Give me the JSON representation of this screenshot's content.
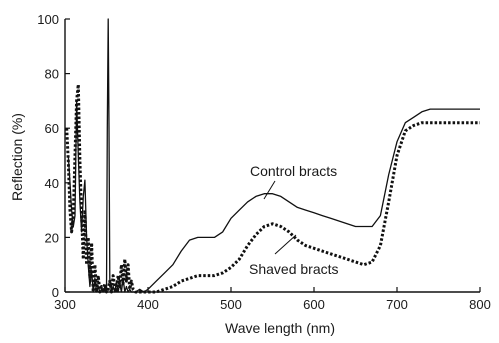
{
  "chart_data": {
    "type": "line",
    "title": "",
    "xlabel": "Wave length (nm)",
    "ylabel": "Reflection (%)",
    "xlim": [
      300,
      800
    ],
    "ylim": [
      0,
      100
    ],
    "xticks": [
      300,
      400,
      500,
      600,
      700,
      800
    ],
    "yticks": [
      0,
      20,
      40,
      60,
      80,
      100
    ],
    "xtick_labels": [
      "300",
      "400",
      "500",
      "600",
      "700",
      "800"
    ],
    "ytick_labels": [
      "0",
      "20",
      "40",
      "60",
      "80",
      "100"
    ],
    "grid": false,
    "legend": "none",
    "annotations": [
      {
        "text": "Control bracts",
        "target_series": "control"
      },
      {
        "text": "Shaved bracts",
        "target_series": "shaved"
      }
    ],
    "series": [
      {
        "key": "control",
        "style": "solid",
        "color": "#111111",
        "x": [
          304,
          306,
          308,
          310,
          312,
          314,
          316,
          318,
          320,
          322,
          324,
          326,
          328,
          330,
          332,
          334,
          336,
          338,
          340,
          342,
          344,
          346,
          348,
          350,
          351,
          352,
          353,
          354,
          356,
          358,
          360,
          362,
          364,
          366,
          368,
          370,
          372,
          374,
          376,
          378,
          380,
          385,
          390,
          395,
          400,
          410,
          420,
          430,
          440,
          450,
          460,
          470,
          480,
          490,
          500,
          510,
          520,
          530,
          540,
          550,
          560,
          570,
          580,
          590,
          600,
          610,
          620,
          630,
          640,
          650,
          660,
          670,
          680,
          690,
          700,
          710,
          720,
          730,
          740,
          750,
          760,
          770,
          780,
          790,
          800
        ],
        "y": [
          50,
          40,
          30,
          24,
          28,
          70,
          50,
          33,
          22,
          35,
          41,
          20,
          10,
          2,
          8,
          0,
          5,
          0,
          2,
          0,
          1,
          0,
          2,
          0,
          60,
          100,
          60,
          5,
          0,
          2,
          0,
          4,
          0,
          3,
          0,
          5,
          0,
          2,
          0,
          1,
          0,
          0,
          1,
          0,
          1,
          4,
          7,
          10,
          15,
          19,
          20,
          20,
          20,
          22,
          27,
          30,
          33,
          35,
          36,
          36,
          35,
          33,
          31,
          30,
          29,
          28,
          27,
          26,
          25,
          24,
          24,
          24,
          28,
          43,
          55,
          62,
          64,
          66,
          67,
          67,
          67,
          67,
          67,
          67,
          67
        ]
      },
      {
        "key": "shaved",
        "style": "dotted",
        "color": "#111111",
        "x": [
          302,
          304,
          306,
          308,
          310,
          312,
          314,
          316,
          318,
          320,
          322,
          324,
          326,
          328,
          330,
          332,
          334,
          336,
          338,
          340,
          342,
          344,
          346,
          348,
          350,
          352,
          354,
          356,
          358,
          360,
          362,
          364,
          366,
          368,
          370,
          372,
          374,
          376,
          378,
          380,
          382,
          385,
          390,
          395,
          400,
          410,
          420,
          430,
          440,
          450,
          460,
          470,
          480,
          490,
          500,
          510,
          520,
          530,
          540,
          550,
          560,
          570,
          580,
          590,
          600,
          610,
          620,
          630,
          640,
          650,
          660,
          670,
          680,
          690,
          700,
          710,
          720,
          730,
          740,
          750,
          760,
          770,
          780,
          790,
          800
        ],
        "y": [
          60,
          48,
          30,
          22,
          28,
          50,
          70,
          76,
          48,
          28,
          12,
          30,
          10,
          20,
          5,
          18,
          0,
          10,
          0,
          6,
          0,
          2,
          0,
          3,
          0,
          1,
          4,
          0,
          6,
          2,
          0,
          6,
          2,
          10,
          3,
          12,
          4,
          10,
          1,
          4,
          1,
          0,
          0,
          0,
          0,
          0,
          1,
          2,
          4,
          5,
          6,
          6,
          6,
          7,
          9,
          12,
          17,
          21,
          24,
          25,
          24,
          22,
          19,
          17,
          16,
          15,
          14,
          13,
          12,
          11,
          10,
          11,
          17,
          33,
          50,
          59,
          61,
          62,
          62,
          62,
          62,
          62,
          62,
          62,
          62
        ]
      }
    ]
  }
}
